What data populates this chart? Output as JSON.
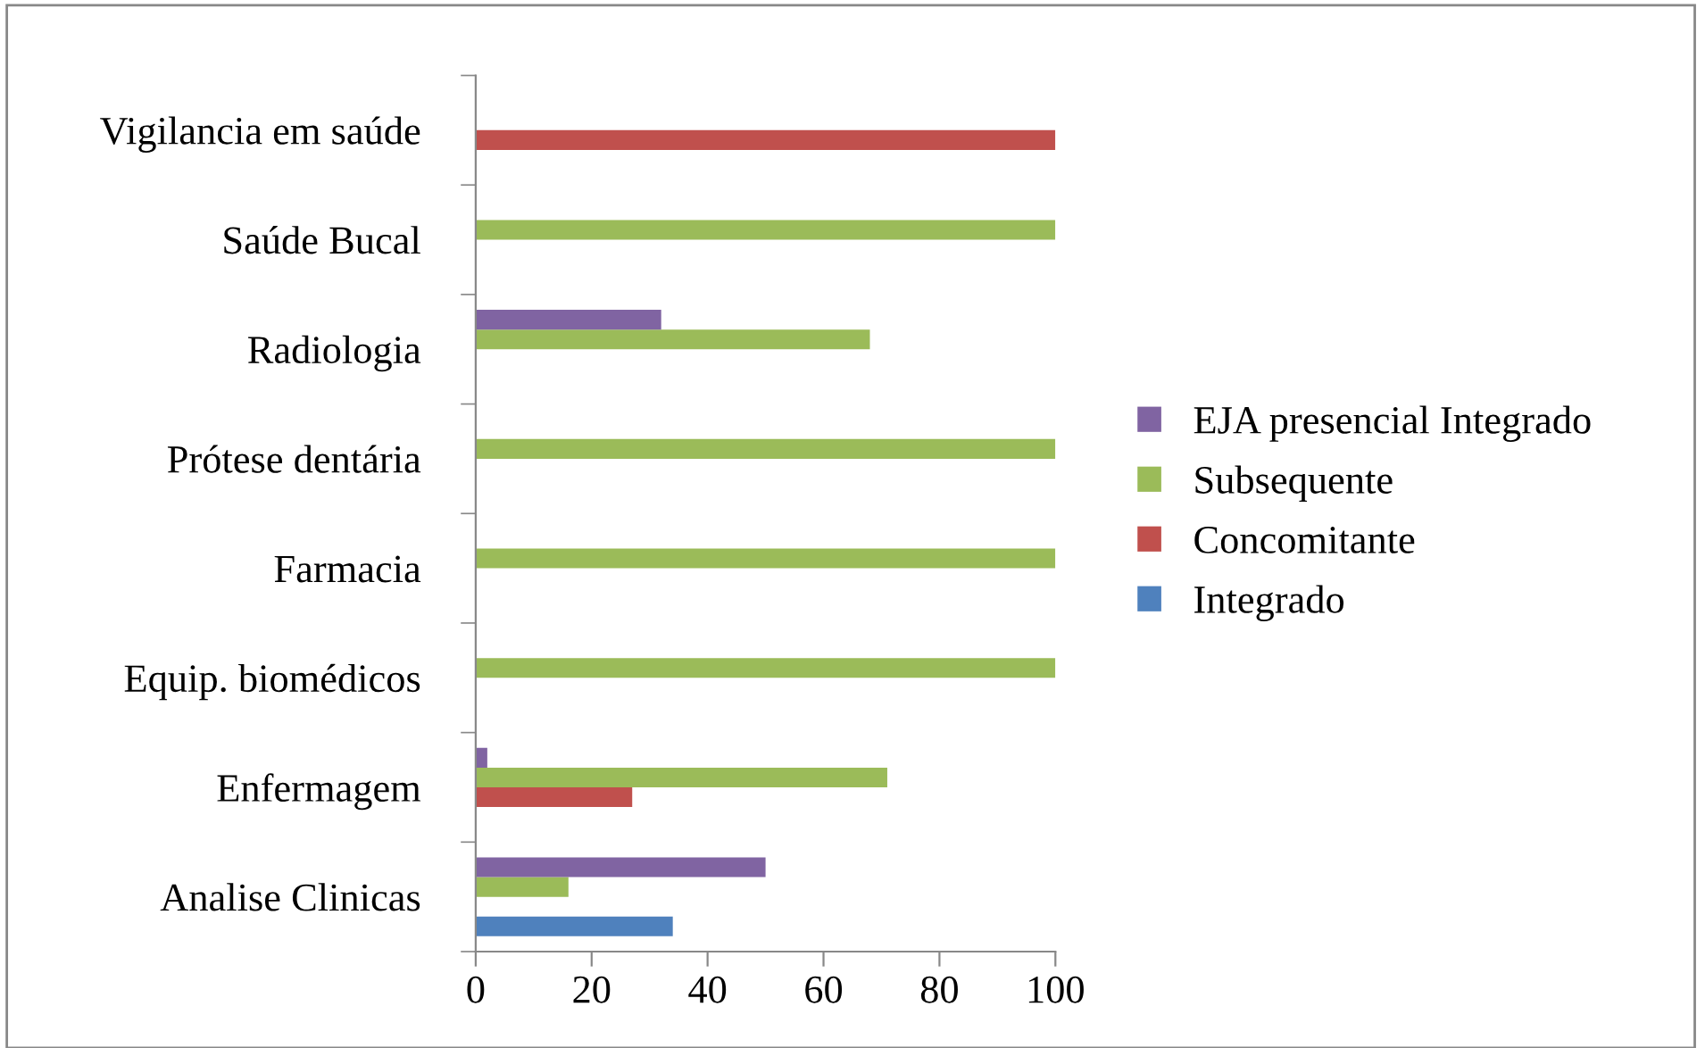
{
  "chart_data": {
    "type": "bar",
    "orientation": "horizontal",
    "categories": [
      "Vigilancia em saúde",
      "Saúde Bucal",
      "Radiologia",
      "Prótese dentária",
      "Farmacia",
      "Equip. biomédicos",
      "Enfermagem",
      "Analise Clinicas"
    ],
    "series": [
      {
        "name": "Integrado",
        "color": "#4f81bd",
        "values": [
          null,
          null,
          null,
          null,
          null,
          null,
          null,
          34
        ]
      },
      {
        "name": "Concomitante",
        "color": "#c0504d",
        "values": [
          100,
          null,
          null,
          null,
          null,
          null,
          27,
          null
        ]
      },
      {
        "name": "Subsequente",
        "color": "#9bbb59",
        "values": [
          null,
          100,
          68,
          100,
          100,
          100,
          71,
          16
        ]
      },
      {
        "name": "EJA presencial Integrado",
        "color": "#8064a2",
        "values": [
          null,
          null,
          32,
          null,
          null,
          null,
          2,
          50
        ]
      }
    ],
    "xlim": [
      0,
      100
    ],
    "xticks": [
      0,
      20,
      40,
      60,
      80,
      100
    ],
    "grid": false,
    "legend": "right"
  }
}
